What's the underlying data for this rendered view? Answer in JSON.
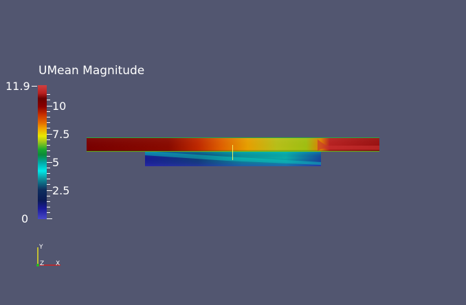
{
  "legend": {
    "title": "UMean Magnitude",
    "max_label": "11.9",
    "min_label": "0",
    "tick_labels": [
      "10",
      "7.5",
      "5",
      "2.5"
    ]
  },
  "orientation_axes": {
    "y_label": "Y",
    "z_label": "Z",
    "x_label": "X"
  },
  "colors": {
    "background": "#525670",
    "max": "#d04040",
    "mid": "#1aa82e",
    "min": "#4848c8"
  }
}
